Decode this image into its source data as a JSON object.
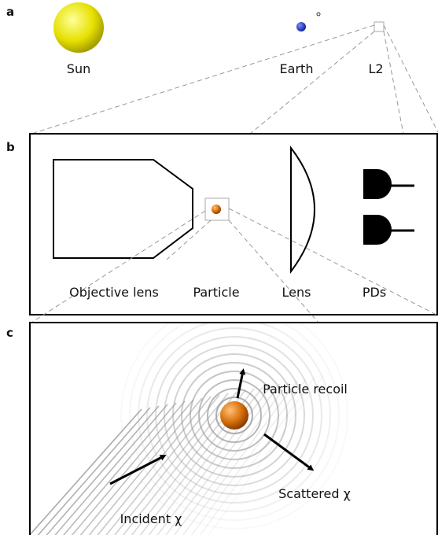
{
  "panel_a": {
    "label": "a",
    "sun": "Sun",
    "earth": "Earth",
    "l2": "L2"
  },
  "panel_b": {
    "label": "b",
    "objective_lens": "Objective lens",
    "particle": "Particle",
    "lens": "Lens",
    "pds": "PDs"
  },
  "panel_c": {
    "label": "c",
    "recoil": "Particle recoil",
    "scattered": "Scattered χ",
    "incident": "Incident χ"
  }
}
